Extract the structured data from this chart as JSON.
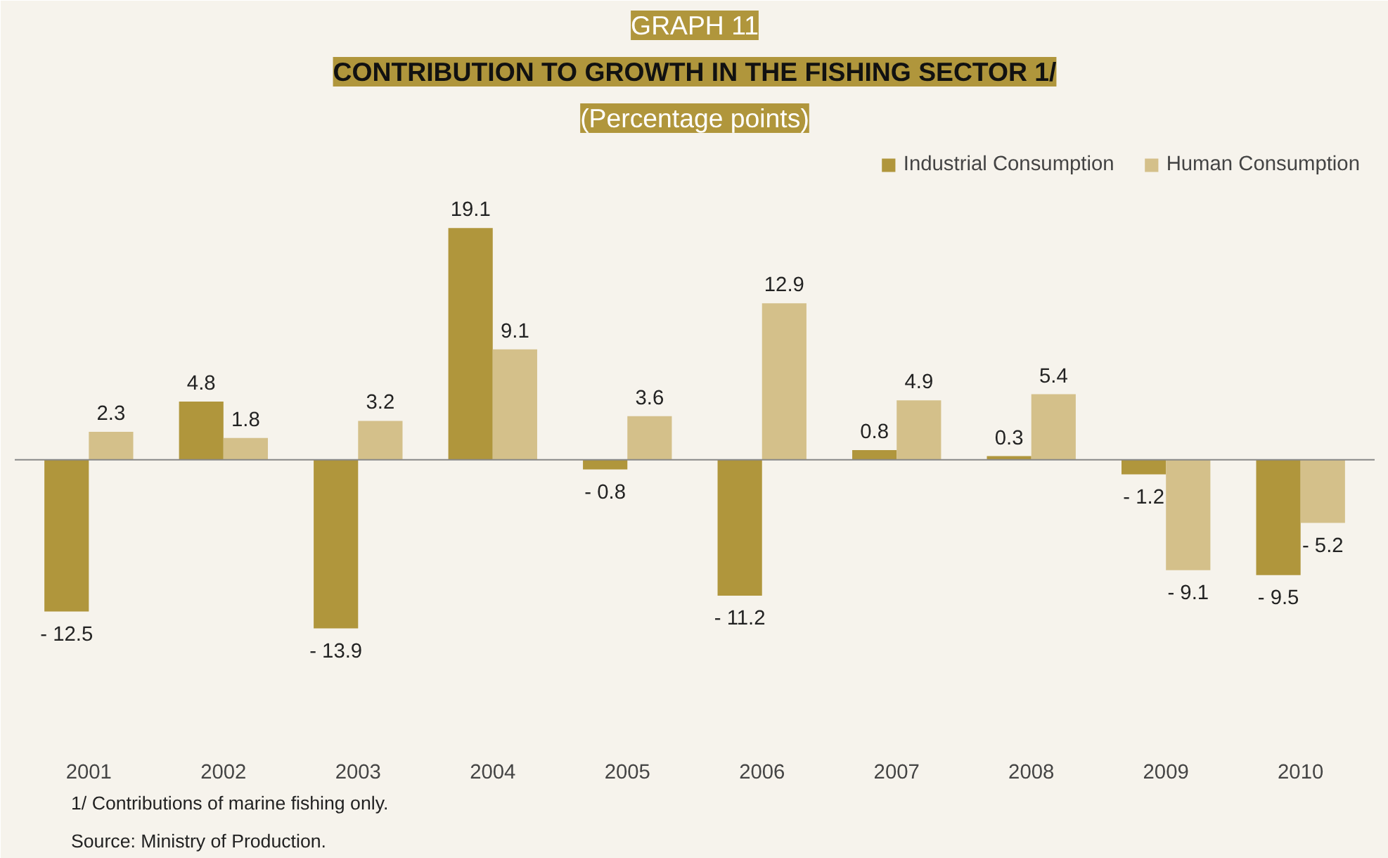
{
  "chart_data": {
    "type": "bar",
    "title": "CONTRIBUTION TO GROWTH IN THE FISHING SECTOR 1/",
    "subtitle": "(Percentage points)",
    "annotations": [
      "GRAPH 11",
      "1/ Contributions of marine fishing only.",
      "Source:  Ministry of Production."
    ],
    "categories": [
      "2001",
      "2002",
      "2003",
      "2004",
      "2005",
      "2006",
      "2007",
      "2008",
      "2009",
      "2010"
    ],
    "series": [
      {
        "name": "Industrial Consumption",
        "color": "#b0963c",
        "values": [
          -12.5,
          4.8,
          -13.9,
          19.1,
          -0.8,
          -11.2,
          0.8,
          0.3,
          -1.2,
          -9.5
        ],
        "value_labels": [
          "- 12.5",
          "4.8",
          "- 13.9",
          "19.1",
          "- 0.8",
          "- 11.2",
          "0.8",
          "0.3",
          "- 1.2",
          "- 9.5"
        ]
      },
      {
        "name": "Human Consumption",
        "color": "#d4c08a",
        "values": [
          2.3,
          1.8,
          3.2,
          9.1,
          3.6,
          12.9,
          4.9,
          5.4,
          -9.1,
          -5.2
        ],
        "value_labels": [
          "2.3",
          "1.8",
          "3.2",
          "9.1",
          "3.6",
          "12.9",
          "4.9",
          "5.4",
          "- 9.1",
          "- 5.2"
        ]
      }
    ],
    "legend": "top right",
    "grid": false
  }
}
